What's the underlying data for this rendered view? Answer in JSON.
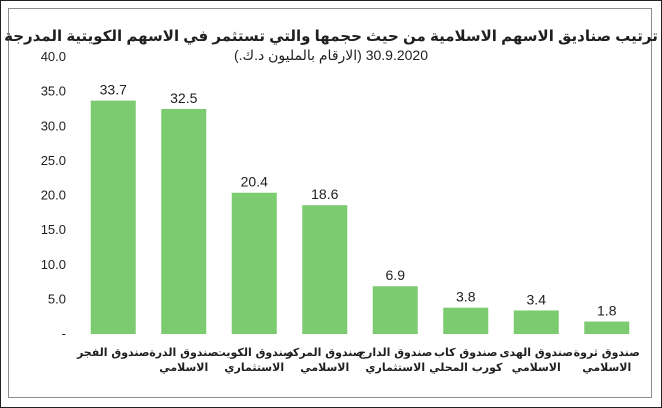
{
  "chart_data": {
    "type": "bar",
    "title": "ترتيب صناديق الاسهم الاسلامية من حيث حجمها والتي تستثمر في الاسهم الكويتية المدرجة",
    "subtitle": "30.9.2020 (الارقام بالمليون د.ك.)",
    "categories": [
      [
        "صندوق الفجر"
      ],
      [
        "صندوق الدرة",
        "الاسلامي"
      ],
      [
        "صندوق الكويت",
        "الاستثماري"
      ],
      [
        "صندوق المركز",
        "الاسلامي"
      ],
      [
        "صندوق الدارج",
        "الاستثماري"
      ],
      [
        "صندوق كاب",
        "كورب المحلي"
      ],
      [
        "صندوق الهدى",
        "الاسلامي"
      ],
      [
        "صندوق ثروة",
        "الاسلامي"
      ]
    ],
    "values": [
      33.7,
      32.5,
      20.4,
      18.6,
      6.9,
      3.8,
      3.4,
      1.8
    ],
    "data_labels": [
      "33.7",
      "32.5",
      "20.4",
      "18.6",
      "6.9",
      "3.8",
      "3.4",
      "1.8"
    ],
    "ylim": [
      0,
      40
    ],
    "yticks": [
      0,
      5,
      10,
      15,
      20,
      25,
      30,
      35,
      40
    ],
    "ytick_labels": [
      "-",
      "5.0",
      "10.0",
      "15.0",
      "20.0",
      "25.0",
      "30.0",
      "35.0",
      "40.0"
    ],
    "xlabel": "",
    "ylabel": "",
    "grid": false,
    "legend": "none",
    "bar_color": "#7ccb71"
  }
}
